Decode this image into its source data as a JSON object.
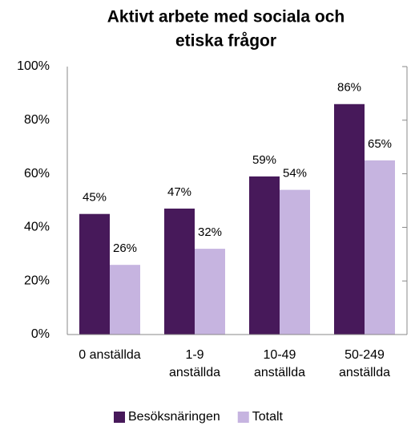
{
  "chart_data": {
    "type": "bar",
    "title": [
      "Aktivt arbete med sociala och",
      "etiska frågor"
    ],
    "categories": [
      "0 anställda",
      "1-9 anställda",
      "10-49 anställda",
      "50-249 anställda"
    ],
    "series": [
      {
        "name": "Besöksnäringen",
        "color": "#47195a",
        "values": [
          45,
          47,
          59,
          86
        ],
        "value_labels": [
          "45%",
          "47%",
          "59%",
          "86%"
        ]
      },
      {
        "name": "Totalt",
        "color": "#c6b4e0",
        "values": [
          26,
          32,
          54,
          65
        ],
        "value_labels": [
          "26%",
          "32%",
          "54%",
          "65%"
        ]
      }
    ],
    "ylim": [
      0,
      100
    ],
    "yticks": [
      {
        "value": 0,
        "label": "0%"
      },
      {
        "value": 20,
        "label": "20%"
      },
      {
        "value": 40,
        "label": "40%"
      },
      {
        "value": 60,
        "label": "60%"
      },
      {
        "value": 80,
        "label": "80%"
      },
      {
        "value": 100,
        "label": "100%"
      }
    ],
    "grid": false,
    "legend": "bottom"
  }
}
